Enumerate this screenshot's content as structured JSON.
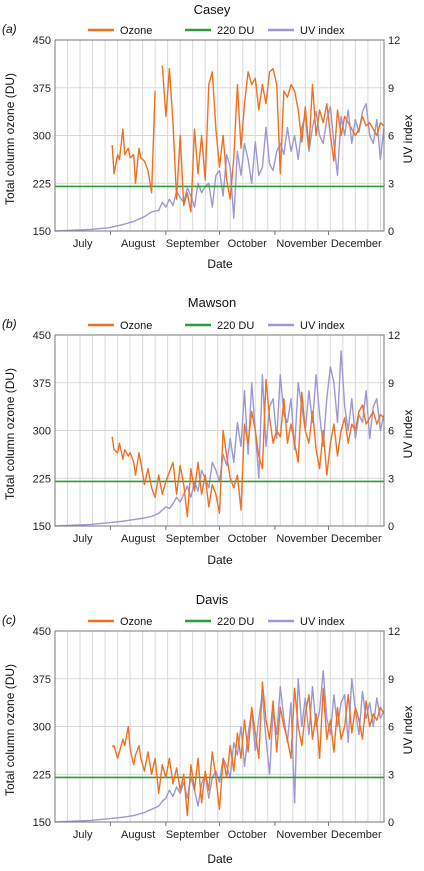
{
  "chart_data": [
    {
      "type": "line",
      "panel_label": "(a)",
      "title": "Casey",
      "xlabel": "Date",
      "ylabel": "Total column ozone (DU)",
      "y2label": "UV index",
      "months": [
        "July",
        "August",
        "September",
        "October",
        "November",
        "December"
      ],
      "ylim": [
        150,
        450
      ],
      "yticks": [
        150,
        225,
        300,
        375,
        450
      ],
      "y2lim": [
        0,
        12
      ],
      "y2ticks": [
        0,
        3,
        6,
        9,
        12
      ],
      "grid": true,
      "legend": "top",
      "series": [
        {
          "name": "Ozone",
          "axis": "left",
          "color": "#f07020",
          "x": [
            32,
            33,
            35,
            36,
            38,
            39,
            41,
            42,
            44,
            45,
            47,
            48,
            50,
            52,
            54,
            56,
            58,
            60,
            62,
            64,
            66,
            68,
            70,
            72,
            74,
            76,
            78,
            80,
            82,
            84,
            86,
            88,
            90,
            92,
            94,
            96,
            98,
            100,
            102,
            104,
            106,
            108,
            110,
            112,
            114,
            116,
            118,
            120,
            122,
            124,
            126,
            128,
            130,
            132,
            134,
            136,
            138,
            140,
            142,
            144,
            146,
            148,
            150,
            152,
            154,
            156,
            158,
            160,
            162,
            164,
            166,
            168,
            170,
            172,
            174,
            176,
            178,
            180,
            182,
            184
          ],
          "y": [
            285,
            240,
            270,
            262,
            310,
            270,
            280,
            265,
            270,
            225,
            280,
            265,
            260,
            245,
            210,
            370,
            null,
            410,
            330,
            405,
            320,
            200,
            300,
            190,
            210,
            180,
            310,
            240,
            300,
            230,
            380,
            400,
            310,
            250,
            300,
            230,
            200,
            265,
            380,
            280,
            350,
            400,
            380,
            390,
            340,
            380,
            350,
            400,
            405,
            380,
            240,
            370,
            360,
            380,
            370,
            340,
            290,
            345,
            280,
            380,
            300,
            340,
            320,
            350,
            300,
            260,
            340,
            300,
            330,
            320,
            310,
            300,
            310,
            330,
            315,
            320,
            310,
            300,
            320,
            315
          ]
        },
        {
          "name": "220 DU",
          "axis": "left",
          "color": "#2e9a3c",
          "x": [
            0,
            184
          ],
          "y": [
            220,
            220
          ]
        },
        {
          "name": "UV index",
          "axis": "right",
          "color": "#9b98d4",
          "x": [
            0,
            10,
            20,
            30,
            38,
            44,
            50,
            54,
            58,
            60,
            62,
            64,
            66,
            68,
            70,
            72,
            74,
            76,
            78,
            80,
            82,
            84,
            86,
            88,
            90,
            92,
            94,
            96,
            98,
            100,
            102,
            104,
            106,
            108,
            110,
            112,
            114,
            116,
            118,
            120,
            122,
            124,
            126,
            128,
            130,
            132,
            134,
            136,
            138,
            140,
            142,
            144,
            146,
            148,
            150,
            152,
            154,
            156,
            158,
            160,
            162,
            164,
            166,
            168,
            170,
            172,
            174,
            176,
            178,
            180,
            182,
            184
          ],
          "y": [
            0,
            0.05,
            0.1,
            0.2,
            0.4,
            0.6,
            0.9,
            1.2,
            1.3,
            1.8,
            1.5,
            2.0,
            1.6,
            2.5,
            2.1,
            1.8,
            2.7,
            2.2,
            1.5,
            3.0,
            2.4,
            2.8,
            3.0,
            1.5,
            3.5,
            3.8,
            2.2,
            4.8,
            4.0,
            0.8,
            5.0,
            3.5,
            5.5,
            4.5,
            3.0,
            5.6,
            3.5,
            4.0,
            6.5,
            4.2,
            3.8,
            5.0,
            5.5,
            4.8,
            6.5,
            5.0,
            6.0,
            4.5,
            6.5,
            7.2,
            5.0,
            6.5,
            7.5,
            6.0,
            5.5,
            7.0,
            7.8,
            5.5,
            3.5,
            7.2,
            6.0,
            7.6,
            5.5,
            7.0,
            6.2,
            7.5,
            8.0,
            6.0,
            5.5,
            7.0,
            4.5,
            6.5
          ]
        }
      ]
    },
    {
      "type": "line",
      "panel_label": "(b)",
      "title": "Mawson",
      "xlabel": "Date",
      "ylabel": "Total column ozone (DU)",
      "y2label": "UV index",
      "months": [
        "July",
        "August",
        "September",
        "October",
        "November",
        "December"
      ],
      "ylim": [
        150,
        450
      ],
      "yticks": [
        150,
        225,
        300,
        375,
        450
      ],
      "y2lim": [
        0,
        12
      ],
      "y2ticks": [
        0,
        3,
        6,
        9,
        12
      ],
      "grid": true,
      "legend": "top",
      "series": [
        {
          "name": "Ozone",
          "axis": "left",
          "color": "#f07020",
          "x": [
            32,
            33,
            35,
            36,
            38,
            39,
            41,
            42,
            44,
            45,
            47,
            48,
            50,
            52,
            54,
            56,
            58,
            60,
            62,
            64,
            66,
            68,
            70,
            72,
            74,
            76,
            78,
            80,
            82,
            84,
            86,
            88,
            90,
            92,
            94,
            96,
            98,
            100,
            102,
            104,
            106,
            108,
            110,
            112,
            114,
            116,
            118,
            120,
            122,
            124,
            126,
            128,
            130,
            132,
            134,
            136,
            138,
            140,
            142,
            144,
            146,
            148,
            150,
            152,
            154,
            156,
            158,
            160,
            162,
            164,
            166,
            168,
            170,
            172,
            174,
            176,
            178,
            180,
            182,
            184
          ],
          "y": [
            290,
            270,
            265,
            280,
            255,
            270,
            260,
            265,
            250,
            230,
            265,
            250,
            215,
            240,
            210,
            195,
            230,
            200,
            220,
            235,
            250,
            200,
            245,
            215,
            165,
            240,
            205,
            250,
            200,
            230,
            180,
            215,
            200,
            170,
            300,
            260,
            225,
            210,
            230,
            175,
            310,
            280,
            330,
            300,
            260,
            240,
            380,
            320,
            280,
            300,
            290,
            350,
            280,
            310,
            280,
            250,
            360,
            300,
            280,
            330,
            270,
            240,
            300,
            230,
            280,
            310,
            260,
            300,
            320,
            280,
            310,
            300,
            330,
            340,
            310,
            320,
            330,
            310,
            325,
            320
          ]
        },
        {
          "name": "220 DU",
          "axis": "left",
          "color": "#2e9a3c",
          "x": [
            0,
            184
          ],
          "y": [
            220,
            220
          ]
        },
        {
          "name": "UV index",
          "axis": "right",
          "color": "#9b98d4",
          "x": [
            0,
            10,
            20,
            30,
            38,
            44,
            50,
            54,
            58,
            60,
            62,
            64,
            66,
            68,
            70,
            72,
            74,
            76,
            78,
            80,
            82,
            84,
            86,
            88,
            90,
            92,
            94,
            96,
            98,
            100,
            102,
            104,
            106,
            108,
            110,
            112,
            114,
            116,
            118,
            120,
            122,
            124,
            126,
            128,
            130,
            132,
            134,
            136,
            138,
            140,
            142,
            144,
            146,
            148,
            150,
            152,
            154,
            156,
            158,
            160,
            162,
            164,
            166,
            168,
            170,
            172,
            174,
            176,
            178,
            180,
            182,
            184
          ],
          "y": [
            0,
            0.05,
            0.1,
            0.2,
            0.3,
            0.4,
            0.5,
            0.6,
            0.8,
            1.0,
            1.2,
            1.1,
            1.4,
            1.8,
            1.5,
            2.0,
            2.5,
            1.8,
            2.8,
            2.2,
            3.5,
            3.0,
            2.4,
            4.0,
            3.5,
            2.8,
            4.5,
            3.8,
            5.5,
            4.0,
            6.5,
            5.0,
            8.5,
            4.5,
            9.0,
            6.0,
            3.0,
            9.5,
            5.0,
            7.5,
            8.0,
            5.5,
            9.5,
            7.0,
            6.5,
            8.0,
            4.8,
            9.0,
            7.5,
            6.0,
            8.5,
            6.5,
            9.5,
            7.0,
            5.0,
            8.0,
            10.0,
            9.0,
            6.5,
            11.0,
            7.5,
            6.0,
            8.0,
            5.5,
            7.0,
            6.5,
            8.5,
            5.5,
            7.5,
            8.0,
            6.0,
            7.0
          ]
        }
      ]
    },
    {
      "type": "line",
      "panel_label": "(c)",
      "title": "Davis",
      "xlabel": "Date",
      "ylabel": "Total column ozone (DU)",
      "y2label": "UV index",
      "months": [
        "July",
        "August",
        "September",
        "October",
        "November",
        "December"
      ],
      "ylim": [
        150,
        450
      ],
      "yticks": [
        150,
        225,
        300,
        375,
        450
      ],
      "y2lim": [
        0,
        12
      ],
      "y2ticks": [
        0,
        3,
        6,
        9,
        12
      ],
      "grid": true,
      "legend": "top",
      "series": [
        {
          "name": "Ozone",
          "axis": "left",
          "color": "#f07020",
          "x": [
            32,
            33,
            35,
            36,
            38,
            39,
            41,
            42,
            44,
            45,
            47,
            48,
            50,
            52,
            54,
            56,
            58,
            60,
            62,
            64,
            66,
            68,
            70,
            72,
            74,
            76,
            78,
            80,
            82,
            84,
            86,
            88,
            90,
            92,
            94,
            96,
            98,
            100,
            102,
            104,
            106,
            108,
            110,
            112,
            114,
            116,
            118,
            120,
            122,
            124,
            126,
            128,
            130,
            132,
            134,
            136,
            138,
            140,
            142,
            144,
            146,
            148,
            150,
            152,
            154,
            156,
            158,
            160,
            162,
            164,
            166,
            168,
            170,
            172,
            174,
            176,
            178,
            180,
            182,
            184
          ],
          "y": [
            268,
            270,
            250,
            260,
            280,
            270,
            300,
            265,
            240,
            255,
            270,
            250,
            230,
            260,
            225,
            250,
            195,
            240,
            220,
            250,
            210,
            235,
            200,
            225,
            160,
            240,
            200,
            250,
            180,
            230,
            200,
            260,
            220,
            170,
            250,
            220,
            270,
            230,
            290,
            250,
            310,
            260,
            330,
            290,
            250,
            370,
            310,
            280,
            340,
            260,
            330,
            300,
            280,
            250,
            360,
            300,
            270,
            320,
            350,
            280,
            320,
            250,
            360,
            280,
            310,
            260,
            330,
            280,
            300,
            350,
            290,
            330,
            310,
            280,
            340,
            300,
            320,
            310,
            330,
            320
          ]
        },
        {
          "name": "220 DU",
          "axis": "left",
          "color": "#2e9a3c",
          "x": [
            0,
            184
          ],
          "y": [
            220,
            220
          ]
        },
        {
          "name": "UV index",
          "axis": "right",
          "color": "#9b98d4",
          "x": [
            0,
            10,
            20,
            30,
            38,
            44,
            50,
            54,
            58,
            60,
            62,
            64,
            66,
            68,
            70,
            72,
            74,
            76,
            78,
            80,
            82,
            84,
            86,
            88,
            90,
            92,
            94,
            96,
            98,
            100,
            102,
            104,
            106,
            108,
            110,
            112,
            114,
            116,
            118,
            120,
            122,
            124,
            126,
            128,
            130,
            132,
            134,
            136,
            138,
            140,
            142,
            144,
            146,
            148,
            150,
            152,
            154,
            156,
            158,
            160,
            162,
            164,
            166,
            168,
            170,
            172,
            174,
            176,
            178,
            180,
            182,
            184
          ],
          "y": [
            0,
            0.05,
            0.1,
            0.2,
            0.3,
            0.4,
            0.6,
            0.8,
            1.0,
            1.3,
            1.5,
            2.0,
            1.6,
            2.2,
            1.8,
            2.5,
            1.5,
            2.8,
            2.0,
            1.0,
            2.4,
            3.0,
            1.5,
            2.8,
            3.2,
            2.5,
            4.0,
            3.5,
            2.8,
            5.0,
            4.2,
            6.0,
            3.5,
            5.5,
            7.0,
            4.5,
            6.5,
            8.0,
            5.2,
            3.0,
            7.0,
            5.5,
            8.5,
            6.5,
            5.0,
            7.5,
            1.2,
            9.0,
            6.0,
            7.8,
            5.5,
            8.5,
            6.0,
            7.0,
            9.5,
            6.5,
            5.5,
            8.0,
            6.0,
            7.5,
            8.0,
            5.0,
            9.0,
            7.0,
            5.5,
            8.2,
            6.5,
            7.5,
            6.0,
            7.8,
            6.5,
            7.0
          ]
        }
      ]
    }
  ]
}
